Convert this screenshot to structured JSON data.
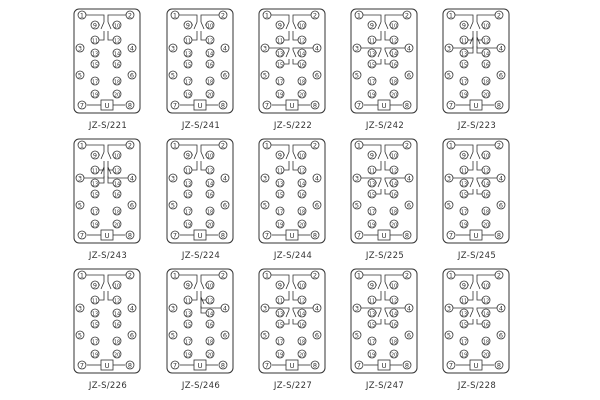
{
  "terminal_labels": [
    "1",
    "2",
    "3",
    "4",
    "5",
    "6",
    "7",
    "8",
    "9",
    "10",
    "11",
    "12",
    "13",
    "14",
    "15",
    "16",
    "17",
    "18",
    "19",
    "20"
  ],
  "coil_label": "U",
  "line_color": "#333333",
  "diagrams": [
    {
      "model": "JZ-S/221",
      "contacts": [
        [
          1,
          9,
          11
        ],
        [
          2,
          10,
          12
        ]
      ]
    },
    {
      "model": "JZ-S/241",
      "contacts": [
        [
          1,
          9,
          11
        ],
        [
          2,
          10,
          12
        ]
      ]
    },
    {
      "model": "JZ-S/222",
      "contacts": [
        [
          1,
          9,
          11
        ],
        [
          2,
          10,
          12
        ],
        [
          3,
          13,
          15
        ],
        [
          4,
          14,
          16
        ]
      ]
    },
    {
      "model": "JZ-S/242",
      "contacts": [
        [
          1,
          9,
          11
        ],
        [
          2,
          10,
          12
        ],
        [
          3,
          13,
          15
        ],
        [
          4,
          14,
          16
        ]
      ]
    },
    {
      "model": "JZ-S/223",
      "contacts": [
        [
          1,
          9,
          11
        ],
        [
          2,
          10,
          12
        ],
        [
          3,
          11,
          13
        ],
        [
          4,
          12,
          14
        ]
      ]
    },
    {
      "model": "JZ-S/243",
      "contacts": [
        [
          1,
          9,
          11
        ],
        [
          2,
          10,
          12
        ],
        [
          3,
          11,
          13
        ],
        [
          4,
          12,
          14
        ]
      ]
    },
    {
      "model": "JZ-S/224",
      "contacts": [
        [
          1,
          9,
          11
        ],
        [
          2,
          10,
          12
        ]
      ]
    },
    {
      "model": "JZ-S/244",
      "contacts": [
        [
          1,
          9,
          11
        ],
        [
          2,
          10,
          12
        ]
      ]
    },
    {
      "model": "JZ-S/225",
      "contacts": [
        [
          1,
          9,
          11
        ],
        [
          2,
          10,
          12
        ],
        [
          3,
          13,
          15
        ],
        [
          4,
          14,
          16
        ]
      ]
    },
    {
      "model": "JZ-S/245",
      "contacts": [
        [
          1,
          9,
          11
        ],
        [
          2,
          10,
          12
        ],
        [
          3,
          13,
          15
        ],
        [
          4,
          14,
          16
        ]
      ]
    },
    {
      "model": "JZ-S/226",
      "contacts": [
        [
          1,
          9,
          11
        ],
        [
          2,
          10,
          12
        ]
      ]
    },
    {
      "model": "JZ-S/246",
      "contacts": [
        [
          1,
          9,
          11
        ],
        [
          2,
          10,
          12
        ],
        [
          4,
          12,
          14
        ]
      ]
    },
    {
      "model": "JZ-S/227",
      "contacts": [
        [
          1,
          9,
          11
        ],
        [
          2,
          10,
          12
        ],
        [
          3,
          13,
          15
        ],
        [
          4,
          14,
          16
        ]
      ]
    },
    {
      "model": "JZ-S/247",
      "contacts": [
        [
          1,
          9,
          11
        ],
        [
          2,
          10,
          12
        ],
        [
          3,
          13,
          15
        ],
        [
          4,
          14,
          16
        ]
      ]
    },
    {
      "model": "JZ-S/228",
      "contacts": [
        [
          1,
          9,
          11
        ],
        [
          2,
          10,
          12
        ],
        [
          3,
          13,
          15
        ],
        [
          4,
          14,
          16
        ]
      ]
    }
  ]
}
